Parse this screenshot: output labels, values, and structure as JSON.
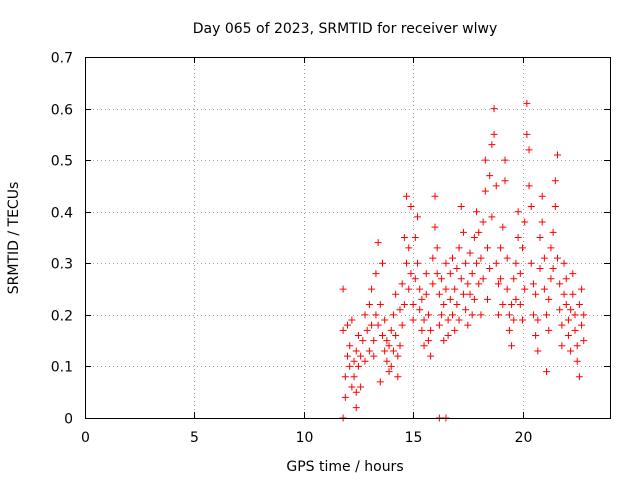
{
  "chart_data": {
    "type": "scatter",
    "title": "Day 065 of 2023, SRMTID for receiver wlwy",
    "xlabel": "GPS time / hours",
    "ylabel": "SRMTID / TECUs",
    "xlim": [
      0,
      24
    ],
    "ylim": [
      0,
      0.7
    ],
    "xticks": [
      0,
      5,
      10,
      15,
      20
    ],
    "xtick_labels": [
      "0",
      "5",
      "10",
      "15",
      "20"
    ],
    "yticks": [
      0,
      0.1,
      0.2,
      0.3,
      0.4,
      0.5,
      0.6,
      0.7
    ],
    "ytick_labels": [
      "0",
      "0.1",
      "0.2",
      "0.3",
      "0.4",
      "0.5",
      "0.6",
      "0.7"
    ],
    "grid": true,
    "marker": "+",
    "color": "#ff0000",
    "series": [
      {
        "name": "SRMTID",
        "points": [
          [
            11.8,
            0.0
          ],
          [
            16.2,
            0.0
          ],
          [
            16.5,
            0.0
          ],
          [
            11.8,
            0.25
          ],
          [
            11.8,
            0.17
          ],
          [
            11.9,
            0.08
          ],
          [
            11.9,
            0.04
          ],
          [
            12.0,
            0.12
          ],
          [
            12.0,
            0.18
          ],
          [
            12.1,
            0.1
          ],
          [
            12.1,
            0.14
          ],
          [
            12.2,
            0.06
          ],
          [
            12.2,
            0.19
          ],
          [
            12.3,
            0.11
          ],
          [
            12.3,
            0.08
          ],
          [
            12.4,
            0.05
          ],
          [
            12.4,
            0.02
          ],
          [
            12.4,
            0.13
          ],
          [
            12.5,
            0.1
          ],
          [
            12.5,
            0.16
          ],
          [
            12.6,
            0.06
          ],
          [
            12.6,
            0.12
          ],
          [
            12.7,
            0.15
          ],
          [
            12.8,
            0.11
          ],
          [
            12.8,
            0.2
          ],
          [
            12.9,
            0.17
          ],
          [
            13.0,
            0.13
          ],
          [
            13.0,
            0.22
          ],
          [
            13.1,
            0.18
          ],
          [
            13.1,
            0.25
          ],
          [
            13.2,
            0.15
          ],
          [
            13.2,
            0.12
          ],
          [
            13.3,
            0.2
          ],
          [
            13.3,
            0.28
          ],
          [
            13.4,
            0.34
          ],
          [
            13.4,
            0.18
          ],
          [
            13.5,
            0.07
          ],
          [
            13.5,
            0.22
          ],
          [
            13.6,
            0.3
          ],
          [
            13.6,
            0.16
          ],
          [
            13.7,
            0.13
          ],
          [
            13.7,
            0.19
          ],
          [
            13.8,
            0.11
          ],
          [
            13.8,
            0.15
          ],
          [
            13.9,
            0.09
          ],
          [
            13.9,
            0.14
          ],
          [
            14.0,
            0.1
          ],
          [
            14.0,
            0.17
          ],
          [
            14.1,
            0.13
          ],
          [
            14.1,
            0.2
          ],
          [
            14.2,
            0.24
          ],
          [
            14.2,
            0.16
          ],
          [
            14.3,
            0.12
          ],
          [
            14.3,
            0.08
          ],
          [
            14.4,
            0.21
          ],
          [
            14.4,
            0.14
          ],
          [
            14.5,
            0.18
          ],
          [
            14.5,
            0.26
          ],
          [
            14.6,
            0.22
          ],
          [
            14.6,
            0.35
          ],
          [
            14.7,
            0.43
          ],
          [
            14.7,
            0.3
          ],
          [
            14.8,
            0.33
          ],
          [
            14.8,
            0.25
          ],
          [
            14.9,
            0.41
          ],
          [
            14.9,
            0.28
          ],
          [
            15.0,
            0.22
          ],
          [
            15.0,
            0.19
          ],
          [
            15.1,
            0.27
          ],
          [
            15.1,
            0.35
          ],
          [
            15.2,
            0.39
          ],
          [
            15.2,
            0.3
          ],
          [
            15.3,
            0.25
          ],
          [
            15.3,
            0.21
          ],
          [
            15.4,
            0.17
          ],
          [
            15.4,
            0.23
          ],
          [
            15.5,
            0.14
          ],
          [
            15.5,
            0.19
          ],
          [
            15.6,
            0.24
          ],
          [
            15.6,
            0.28
          ],
          [
            15.7,
            0.15
          ],
          [
            15.7,
            0.2
          ],
          [
            15.8,
            0.12
          ],
          [
            15.8,
            0.17
          ],
          [
            15.9,
            0.26
          ],
          [
            15.9,
            0.31
          ],
          [
            16.0,
            0.43
          ],
          [
            16.0,
            0.37
          ],
          [
            16.1,
            0.33
          ],
          [
            16.1,
            0.28
          ],
          [
            16.2,
            0.24
          ],
          [
            16.2,
            0.18
          ],
          [
            16.3,
            0.2
          ],
          [
            16.3,
            0.27
          ],
          [
            16.4,
            0.15
          ],
          [
            16.4,
            0.22
          ],
          [
            16.5,
            0.3
          ],
          [
            16.5,
            0.25
          ],
          [
            16.6,
            0.19
          ],
          [
            16.6,
            0.16
          ],
          [
            16.7,
            0.28
          ],
          [
            16.7,
            0.23
          ],
          [
            16.8,
            0.2
          ],
          [
            16.8,
            0.31
          ],
          [
            16.9,
            0.17
          ],
          [
            16.9,
            0.25
          ],
          [
            17.0,
            0.22
          ],
          [
            17.0,
            0.29
          ],
          [
            17.1,
            0.33
          ],
          [
            17.1,
            0.19
          ],
          [
            17.2,
            0.27
          ],
          [
            17.2,
            0.41
          ],
          [
            17.3,
            0.36
          ],
          [
            17.3,
            0.24
          ],
          [
            17.4,
            0.21
          ],
          [
            17.4,
            0.3
          ],
          [
            17.5,
            0.26
          ],
          [
            17.5,
            0.18
          ],
          [
            17.6,
            0.24
          ],
          [
            17.6,
            0.32
          ],
          [
            17.7,
            0.2
          ],
          [
            17.7,
            0.28
          ],
          [
            17.8,
            0.23
          ],
          [
            17.8,
            0.35
          ],
          [
            17.9,
            0.3
          ],
          [
            17.9,
            0.4
          ],
          [
            18.0,
            0.36
          ],
          [
            18.0,
            0.26
          ],
          [
            18.1,
            0.2
          ],
          [
            18.1,
            0.31
          ],
          [
            18.2,
            0.38
          ],
          [
            18.2,
            0.27
          ],
          [
            18.3,
            0.44
          ],
          [
            18.3,
            0.5
          ],
          [
            18.4,
            0.33
          ],
          [
            18.4,
            0.23
          ],
          [
            18.5,
            0.29
          ],
          [
            18.5,
            0.47
          ],
          [
            18.6,
            0.53
          ],
          [
            18.6,
            0.39
          ],
          [
            18.7,
            0.6
          ],
          [
            18.7,
            0.55
          ],
          [
            18.8,
            0.45
          ],
          [
            18.8,
            0.3
          ],
          [
            18.9,
            0.26
          ],
          [
            18.9,
            0.2
          ],
          [
            19.0,
            0.33
          ],
          [
            19.0,
            0.27
          ],
          [
            19.1,
            0.37
          ],
          [
            19.1,
            0.22
          ],
          [
            19.2,
            0.46
          ],
          [
            19.2,
            0.5
          ],
          [
            19.3,
            0.31
          ],
          [
            19.3,
            0.25
          ],
          [
            19.4,
            0.2
          ],
          [
            19.4,
            0.17
          ],
          [
            19.5,
            0.14
          ],
          [
            19.5,
            0.22
          ],
          [
            19.6,
            0.27
          ],
          [
            19.6,
            0.19
          ],
          [
            19.7,
            0.23
          ],
          [
            19.7,
            0.3
          ],
          [
            19.8,
            0.35
          ],
          [
            19.8,
            0.4
          ],
          [
            19.9,
            0.28
          ],
          [
            19.9,
            0.22
          ],
          [
            20.0,
            0.19
          ],
          [
            20.0,
            0.33
          ],
          [
            20.1,
            0.38
          ],
          [
            20.1,
            0.25
          ],
          [
            20.2,
            0.55
          ],
          [
            20.2,
            0.61
          ],
          [
            20.3,
            0.52
          ],
          [
            20.3,
            0.45
          ],
          [
            20.4,
            0.41
          ],
          [
            20.4,
            0.3
          ],
          [
            20.5,
            0.26
          ],
          [
            20.5,
            0.2
          ],
          [
            20.6,
            0.16
          ],
          [
            20.6,
            0.24
          ],
          [
            20.7,
            0.13
          ],
          [
            20.7,
            0.19
          ],
          [
            20.8,
            0.29
          ],
          [
            20.8,
            0.35
          ],
          [
            20.9,
            0.43
          ],
          [
            20.9,
            0.38
          ],
          [
            21.0,
            0.31
          ],
          [
            21.0,
            0.25
          ],
          [
            21.1,
            0.2
          ],
          [
            21.1,
            0.09
          ],
          [
            21.2,
            0.17
          ],
          [
            21.2,
            0.23
          ],
          [
            21.3,
            0.27
          ],
          [
            21.3,
            0.33
          ],
          [
            21.4,
            0.29
          ],
          [
            21.4,
            0.36
          ],
          [
            21.5,
            0.41
          ],
          [
            21.5,
            0.46
          ],
          [
            21.6,
            0.51
          ],
          [
            21.6,
            0.31
          ],
          [
            21.7,
            0.26
          ],
          [
            21.7,
            0.21
          ],
          [
            21.8,
            0.18
          ],
          [
            21.8,
            0.14
          ],
          [
            21.9,
            0.24
          ],
          [
            21.9,
            0.3
          ],
          [
            22.0,
            0.27
          ],
          [
            22.0,
            0.22
          ],
          [
            22.1,
            0.19
          ],
          [
            22.1,
            0.16
          ],
          [
            22.2,
            0.13
          ],
          [
            22.2,
            0.21
          ],
          [
            22.3,
            0.28
          ],
          [
            22.3,
            0.24
          ],
          [
            22.4,
            0.2
          ],
          [
            22.4,
            0.17
          ],
          [
            22.5,
            0.14
          ],
          [
            22.5,
            0.11
          ],
          [
            22.6,
            0.08
          ],
          [
            22.6,
            0.22
          ],
          [
            22.7,
            0.18
          ],
          [
            22.7,
            0.25
          ],
          [
            22.8,
            0.15
          ],
          [
            22.8,
            0.2
          ]
        ]
      }
    ]
  }
}
